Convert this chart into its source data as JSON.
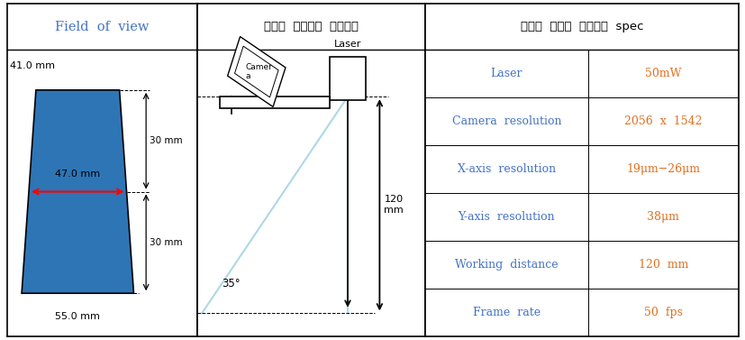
{
  "title_col1": "Field  of  view",
  "title_col2": "레이저  비전센서  기초설계",
  "title_col3": "개발된  레이저  비전센서  spec",
  "orange_color": "#E07020",
  "blue_color": "#4472C4",
  "trapezoid_color": "#2E75B6",
  "dim_top": "41.0 mm",
  "dim_mid": "47.0 mm",
  "dim_bot": "55.0 mm",
  "dim_30top": "30 mm",
  "dim_30bot": "30 mm",
  "spec_rows": [
    [
      "Laser",
      "50mW"
    ],
    [
      "Camera  resolution",
      "2056  x  1542"
    ],
    [
      "X-axis  resolution",
      "19μm−26μm"
    ],
    [
      "Y-axis  resolution",
      "38μm"
    ],
    [
      "Working  distance",
      "120  mm"
    ],
    [
      "Frame  rate",
      "50  fps"
    ]
  ],
  "angle_label": "35°",
  "height_label": "120\nmm",
  "laser_label": "Laser",
  "camera_label": "Camer\na"
}
